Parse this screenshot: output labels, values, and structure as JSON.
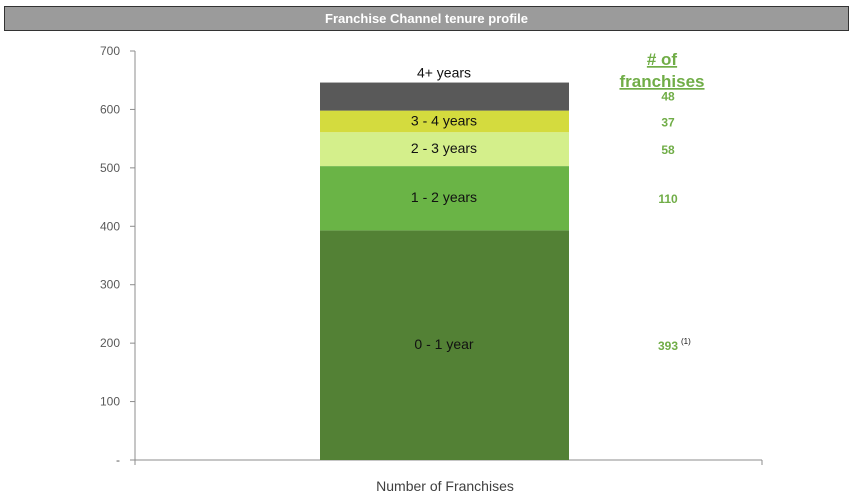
{
  "chart_data": {
    "type": "bar",
    "stacked": true,
    "title": "Franchise Channel tenure profile",
    "categories": [
      "Number of Franchises"
    ],
    "series": [
      {
        "name": "0 - 1 year",
        "values": [
          393
        ],
        "color": "#538135"
      },
      {
        "name": "1 - 2 years",
        "values": [
          110
        ],
        "color": "#6ab446"
      },
      {
        "name": "2 - 3 years",
        "values": [
          58
        ],
        "color": "#d4ef8b"
      },
      {
        "name": "3 - 4 years",
        "values": [
          37
        ],
        "color": "#d4db3e"
      },
      {
        "name": "4+ years",
        "values": [
          48
        ],
        "color": "#595959"
      }
    ],
    "yticks": [
      "-",
      "100",
      "200",
      "300",
      "400",
      "500",
      "600",
      "700"
    ],
    "ylim": [
      0,
      700
    ],
    "count_header": [
      "# of",
      "franchises"
    ],
    "count_labels": [
      "393",
      "110",
      "58",
      "37",
      "48"
    ],
    "count_footnote": "(1)",
    "count_color": "#70ad47",
    "grid": false
  }
}
